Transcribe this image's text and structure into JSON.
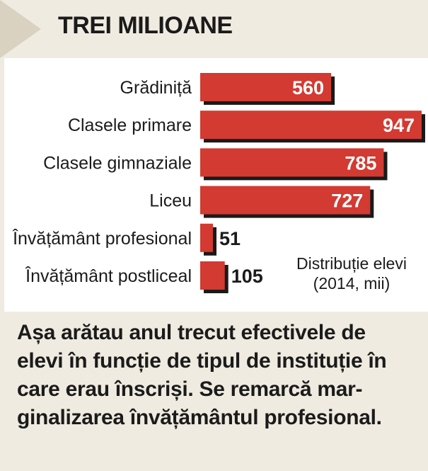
{
  "header": {
    "title": "TREI MILIOANE"
  },
  "caption": "Așa arătau anul trecut efectivele de\nelevi în funcție de tipul de instituție în\ncare erau înscriși. Se remarcă mar-\nginalizarea învățământul profesional.",
  "colors": {
    "bar": "#d23a32",
    "bar_shadow": "#1a1a1a",
    "background": "#efebe0",
    "panel": "#ffffff",
    "title_corner": "#d9d2c0"
  },
  "chart_data": {
    "type": "bar",
    "orientation": "horizontal",
    "categories": [
      "Grădiniță",
      "Clasele primare",
      "Clasele gimnaziale",
      "Liceu",
      "Învățământ profesional",
      "Învățământ postliceal"
    ],
    "values": [
      560,
      947,
      785,
      727,
      51,
      105
    ],
    "value_labels": [
      "560",
      "947",
      "785",
      "727",
      "51",
      "105"
    ],
    "legend_note": "Distribuție elevi\n(2014, mii)",
    "xlim": [
      0,
      947
    ],
    "grid": false,
    "data_labels": "inside-end; outside for short bars"
  }
}
